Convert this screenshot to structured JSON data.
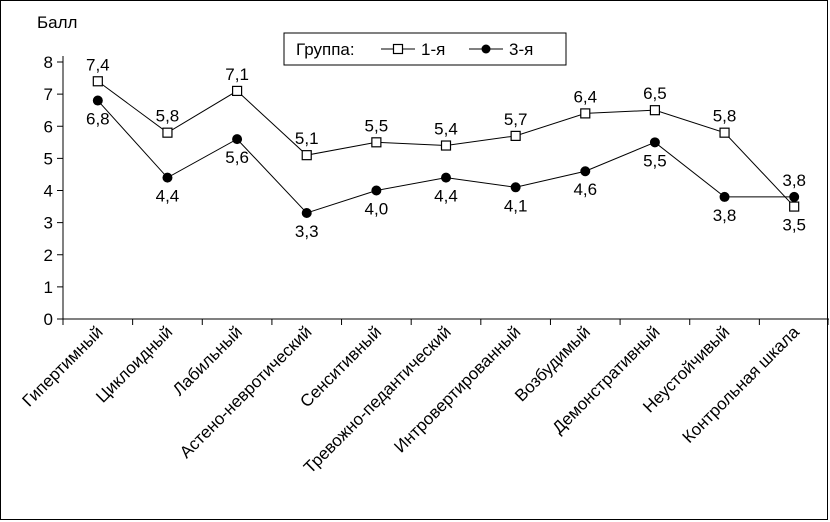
{
  "chart_data": {
    "type": "line",
    "ylabel": "Балл",
    "ylim": [
      0,
      8
    ],
    "yticks": [
      0,
      1,
      2,
      3,
      4,
      5,
      6,
      7,
      8
    ],
    "grid": false,
    "legend_title": "Группа:",
    "legend_position": "top",
    "categories": [
      "Гипертимный",
      "Циклоидный",
      "Лабильный",
      "Астено-невротический",
      "Сенситивный",
      "Тревожно-педантический",
      "Интровертированный",
      "Возбудимый",
      "Демонстративный",
      "Неустойчивый",
      "Контрольная шкала"
    ],
    "series": [
      {
        "name": "1-я",
        "marker": "open-square",
        "color": "#000000",
        "values": [
          7.4,
          5.8,
          7.1,
          5.1,
          5.5,
          5.4,
          5.7,
          6.4,
          6.5,
          5.8,
          3.5
        ],
        "labels": [
          "7,4",
          "5,8",
          "7,1",
          "5,1",
          "5,5",
          "5,4",
          "5,7",
          "6,4",
          "6,5",
          "5,8",
          "3,5"
        ]
      },
      {
        "name": "3-я",
        "marker": "filled-circle",
        "color": "#000000",
        "values": [
          6.8,
          4.4,
          5.6,
          3.3,
          4.0,
          4.4,
          4.1,
          4.6,
          5.5,
          3.8,
          3.8
        ],
        "labels": [
          "6,8",
          "4,4",
          "5,6",
          "3,3",
          "4,0",
          "4,4",
          "4,1",
          "4,6",
          "5,5",
          "3,8",
          "3,8"
        ]
      }
    ]
  }
}
